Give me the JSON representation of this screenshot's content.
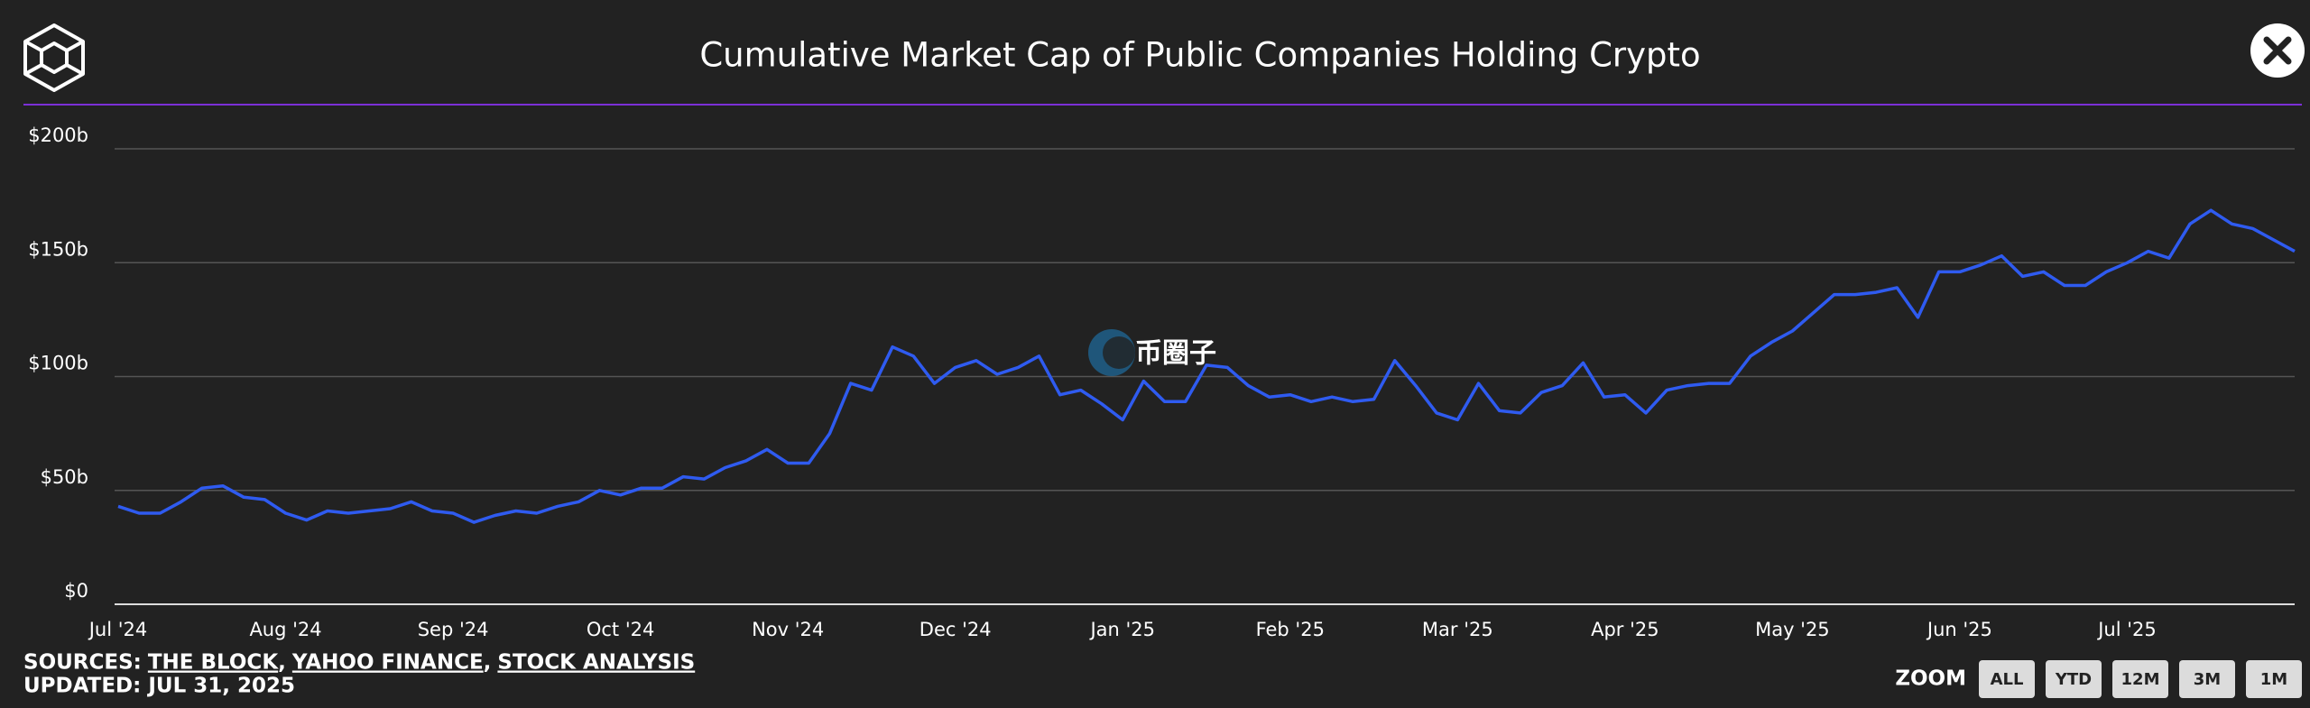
{
  "chart_data": {
    "type": "line",
    "title": "Cumulative Market Cap of Public Companies Holding Crypto",
    "watermark": "币圈子",
    "categories": [
      "Jul '24",
      null,
      null,
      null,
      null,
      null,
      null,
      null,
      "Aug '24",
      null,
      null,
      null,
      null,
      null,
      null,
      null,
      "Sep '24",
      null,
      null,
      null,
      null,
      null,
      null,
      null,
      "Oct '24",
      null,
      null,
      null,
      null,
      null,
      null,
      null,
      "Nov '24",
      null,
      null,
      null,
      null,
      null,
      null,
      null,
      "Dec '24",
      null,
      null,
      null,
      null,
      null,
      null,
      null,
      "Jan '25",
      null,
      null,
      null,
      null,
      null,
      null,
      null,
      "Feb '25",
      null,
      null,
      null,
      null,
      null,
      null,
      null,
      "Mar '25",
      null,
      null,
      null,
      null,
      null,
      null,
      null,
      "Apr '25",
      null,
      null,
      null,
      null,
      null,
      null,
      null,
      "May '25",
      null,
      null,
      null,
      null,
      null,
      null,
      null,
      "Jun '25",
      null,
      null,
      null,
      null,
      null,
      null,
      null,
      "Jul '25",
      null,
      null,
      null,
      null,
      null,
      null,
      null,
      null
    ],
    "series": [
      {
        "name": "Cumulative Market Cap",
        "color": "#2f5bf0",
        "values": [
          43,
          40,
          40,
          45,
          51,
          52,
          47,
          46,
          40,
          37,
          41,
          40,
          41,
          42,
          45,
          41,
          40,
          36,
          39,
          41,
          40,
          43,
          45,
          50,
          48,
          51,
          51,
          56,
          55,
          60,
          63,
          68,
          62,
          62,
          75,
          97,
          94,
          113,
          109,
          97,
          104,
          107,
          101,
          104,
          109,
          92,
          94,
          88,
          81,
          98,
          89,
          89,
          105,
          104,
          96,
          91,
          92,
          89,
          91,
          89,
          90,
          107,
          96,
          84,
          81,
          97,
          85,
          84,
          93,
          96,
          106,
          91,
          92,
          84,
          94,
          96,
          97,
          97,
          109,
          115,
          120,
          128,
          136,
          136,
          137,
          139,
          126,
          146,
          146,
          149,
          153,
          144,
          146,
          140,
          140,
          146,
          150,
          155,
          152,
          167,
          173,
          167,
          165,
          160,
          155
        ]
      }
    ],
    "ylim": [
      0,
      200
    ],
    "yticks": [
      {
        "value": 0,
        "label": "$0"
      },
      {
        "value": 50,
        "label": "$50b"
      },
      {
        "value": 100,
        "label": "$100b"
      },
      {
        "value": 150,
        "label": "$150b"
      },
      {
        "value": 200,
        "label": "$200b"
      }
    ],
    "grid": true,
    "sources_label": "SOURCES:",
    "sources": [
      "THE BLOCK",
      "YAHOO FINANCE",
      "STOCK ANALYSIS"
    ],
    "separator": ",",
    "updated": "UPDATED: JUL 31, 2025",
    "zoom_label": "ZOOM",
    "zoom_options": [
      "ALL",
      "YTD",
      "12M",
      "3M",
      "1M"
    ]
  }
}
